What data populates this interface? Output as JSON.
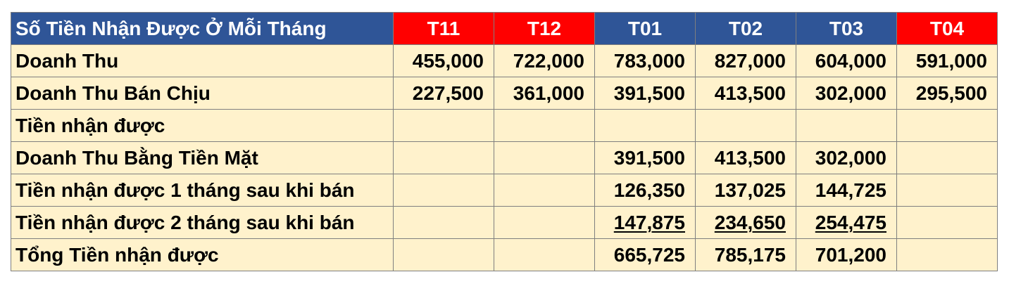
{
  "header": {
    "title": "Số Tiền Nhận Được Ở Mỗi Tháng",
    "months": [
      {
        "label": "T11",
        "color": "#ff0000"
      },
      {
        "label": "T12",
        "color": "#ff0000"
      },
      {
        "label": "T01",
        "color": "#2f5597"
      },
      {
        "label": "T02",
        "color": "#2f5597"
      },
      {
        "label": "T03",
        "color": "#2f5597"
      },
      {
        "label": "T04",
        "color": "#ff0000"
      }
    ],
    "title_color": "#2f5597"
  },
  "rows": [
    {
      "label": "Doanh Thu",
      "cells": [
        "455,000",
        "722,000",
        "783,000",
        "827,000",
        "604,000",
        "591,000"
      ],
      "underline": false
    },
    {
      "label": "Doanh Thu Bán Chịu",
      "cells": [
        "227,500",
        "361,000",
        "391,500",
        "413,500",
        "302,000",
        "295,500"
      ],
      "underline": false
    },
    {
      "label": "Tiền nhận được",
      "cells": [
        "",
        "",
        "",
        "",
        "",
        ""
      ],
      "underline": false
    },
    {
      "label": "Doanh Thu Bằng Tiền Mặt",
      "cells": [
        "",
        "",
        "391,500",
        "413,500",
        "302,000",
        ""
      ],
      "underline": false
    },
    {
      "label": "Tiền nhận được 1 tháng sau khi bán",
      "cells": [
        "",
        "",
        "126,350",
        "137,025",
        "144,725",
        ""
      ],
      "underline": false
    },
    {
      "label": "Tiền nhận được 2 tháng sau khi bán",
      "cells": [
        "",
        "",
        "147,875",
        "234,650",
        "254,475",
        ""
      ],
      "underline": true
    },
    {
      "label": "Tổng Tiền nhận được",
      "cells": [
        "",
        "",
        "665,725",
        "785,175",
        "701,200",
        ""
      ],
      "underline": false
    }
  ],
  "cell_background": "#fff2cc"
}
